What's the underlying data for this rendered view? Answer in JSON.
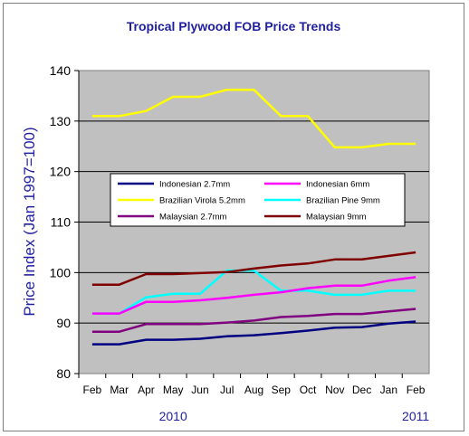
{
  "chart_data": {
    "type": "line",
    "title": "Tropical Plywood FOB Price Trends",
    "ylabel": "Price Index (Jan 1997=100)",
    "xlabel": "",
    "ylim": [
      80,
      140
    ],
    "yticks": [
      80,
      90,
      100,
      110,
      120,
      130,
      140
    ],
    "grid": true,
    "legend_placement": "center",
    "categories": [
      "Feb",
      "Mar",
      "Apr",
      "May",
      "Jun",
      "Jul",
      "Aug",
      "Sep",
      "Oct",
      "Nov",
      "Dec",
      "Jan",
      "Feb"
    ],
    "year_labels": [
      {
        "label": "2010",
        "category_index": 3
      },
      {
        "label": "2011",
        "category_index": 12
      }
    ],
    "series": [
      {
        "name": "Indonesian 2.7mm",
        "color": "#000080",
        "values": [
          85.8,
          85.8,
          86.7,
          86.7,
          86.9,
          87.4,
          87.6,
          88.0,
          88.5,
          89.1,
          89.2,
          89.9,
          90.3
        ]
      },
      {
        "name": "Indonesian 6mm",
        "color": "#ff00ff",
        "values": [
          91.9,
          91.9,
          94.2,
          94.2,
          94.5,
          95.0,
          95.6,
          96.1,
          96.9,
          97.4,
          97.4,
          98.4,
          99.1
        ]
      },
      {
        "name": "Brazilian Virola 5.2mm",
        "color": "#ffff00",
        "values": [
          131.0,
          131.0,
          132.0,
          134.8,
          134.8,
          136.2,
          136.2,
          131.0,
          131.0,
          124.8,
          124.8,
          125.5,
          125.5
        ]
      },
      {
        "name": "Brazilian Pine 9mm",
        "color": "#00ffff",
        "values": [
          91.9,
          91.9,
          95.1,
          95.8,
          95.8,
          100.4,
          100.4,
          96.4,
          96.4,
          95.6,
          95.6,
          96.4,
          96.4
        ]
      },
      {
        "name": "Malaysian 2.7mm",
        "color": "#800080",
        "values": [
          88.3,
          88.3,
          89.8,
          89.8,
          89.8,
          90.1,
          90.5,
          91.2,
          91.4,
          91.8,
          91.8,
          92.3,
          92.8
        ]
      },
      {
        "name": "Malaysian 9mm",
        "color": "#800000",
        "values": [
          97.6,
          97.6,
          99.7,
          99.7,
          99.9,
          100.1,
          100.8,
          101.4,
          101.8,
          102.6,
          102.6,
          103.3,
          104.0
        ]
      }
    ]
  },
  "colors": {
    "plot_background": "#c0c0c0",
    "title": "#1f1fa0",
    "ylabel": "#1f1fa0"
  }
}
